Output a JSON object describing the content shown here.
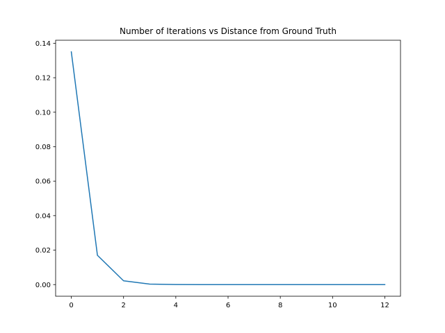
{
  "chart_data": {
    "type": "line",
    "title": "Number of Iterations vs Distance from Ground Truth",
    "xlabel": "",
    "ylabel": "",
    "x": [
      0,
      1,
      2,
      3,
      4,
      5,
      6,
      7,
      8,
      9,
      10,
      11,
      12
    ],
    "series": [
      {
        "values": [
          0.135,
          0.017,
          0.0022,
          0.0003,
          5e-05,
          1e-05,
          0.0,
          0.0,
          0.0,
          0.0,
          0.0,
          0.0,
          0.0
        ],
        "color": "#1f77b4"
      }
    ],
    "xlim": [
      -0.6,
      12.6
    ],
    "ylim": [
      -0.00675,
      0.14175
    ],
    "xticks": [
      0,
      2,
      4,
      6,
      8,
      10,
      12
    ],
    "xtick_labels": [
      "0",
      "2",
      "4",
      "6",
      "8",
      "10",
      "12"
    ],
    "yticks": [
      0.0,
      0.02,
      0.04,
      0.06,
      0.08,
      0.1,
      0.12,
      0.14
    ],
    "ytick_labels": [
      "0.00",
      "0.02",
      "0.04",
      "0.06",
      "0.08",
      "0.10",
      "0.12",
      "0.14"
    ],
    "grid": false,
    "legend": "none"
  }
}
